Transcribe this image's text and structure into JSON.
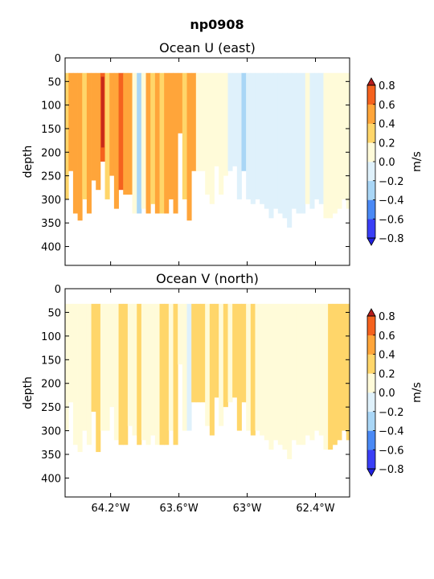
{
  "suptitle": "np0908",
  "chart_data": [
    {
      "type": "heatmap",
      "title": "Ocean U (east)",
      "ylabel": "depth",
      "xlabel": "",
      "x_ticks": [
        "64.2°W",
        "63.6°W",
        "63°W",
        "62.4°W"
      ],
      "x_tick_values": [
        -64.2,
        -63.6,
        -63.0,
        -62.4
      ],
      "x_range": [
        -64.6,
        -62.1
      ],
      "y_ticks": [
        "0",
        "50",
        "100",
        "150",
        "200",
        "250",
        "300",
        "350",
        "400"
      ],
      "y_range": [
        440,
        0
      ],
      "y_inverted": true,
      "colorbar": {
        "label": "m/s",
        "ticks": [
          "0.8",
          "0.6",
          "0.4",
          "0.2",
          "0.0",
          "−0.2",
          "−0.4",
          "−0.6",
          "−0.8"
        ],
        "levels": [
          -0.8,
          -0.6,
          -0.4,
          -0.2,
          0.0,
          0.2,
          0.4,
          0.6,
          0.8
        ],
        "extend": "both"
      },
      "profiles": [
        {
          "lon": -64.6,
          "bottom": 300,
          "v": 0.25
        },
        {
          "lon": -64.57,
          "bottom": 240,
          "v": 0.45
        },
        {
          "lon": -64.53,
          "bottom": 330,
          "v": 0.55
        },
        {
          "lon": -64.49,
          "bottom": 345,
          "v": 0.45
        },
        {
          "lon": -64.45,
          "bottom": 300,
          "v": 0.3
        },
        {
          "lon": -64.41,
          "bottom": 330,
          "v": 0.45
        },
        {
          "lon": -64.37,
          "bottom": 260,
          "v": 0.55
        },
        {
          "lon": -64.33,
          "bottom": 280,
          "v": 0.45
        },
        {
          "lon": -64.29,
          "bottom": 220,
          "v": 0.7
        },
        {
          "lon": -64.25,
          "bottom": 300,
          "v": 0.3
        },
        {
          "lon": -64.21,
          "bottom": 250,
          "v": 0.55
        },
        {
          "lon": -64.17,
          "bottom": 320,
          "v": 0.45
        },
        {
          "lon": -64.13,
          "bottom": 280,
          "v": 0.6
        },
        {
          "lon": -64.09,
          "bottom": 290,
          "v": 0.55
        },
        {
          "lon": -64.05,
          "bottom": 290,
          "v": 0.45
        },
        {
          "lon": -64.01,
          "bottom": 330,
          "v": 0.15
        },
        {
          "lon": -63.97,
          "bottom": 330,
          "v": -0.25
        },
        {
          "lon": -63.93,
          "bottom": 320,
          "v": 0.1
        },
        {
          "lon": -63.89,
          "bottom": 330,
          "v": 0.45
        },
        {
          "lon": -63.85,
          "bottom": 310,
          "v": 0.25
        },
        {
          "lon": -63.81,
          "bottom": 330,
          "v": 0.55
        },
        {
          "lon": -63.77,
          "bottom": 330,
          "v": 0.35
        },
        {
          "lon": -63.73,
          "bottom": 330,
          "v": 0.55
        },
        {
          "lon": -63.69,
          "bottom": 300,
          "v": 0.5
        },
        {
          "lon": -63.65,
          "bottom": 330,
          "v": 0.45
        },
        {
          "lon": -63.61,
          "bottom": 160,
          "v": 0.5
        },
        {
          "lon": -63.57,
          "bottom": 300,
          "v": 0.35
        },
        {
          "lon": -63.53,
          "bottom": 345,
          "v": 0.55
        },
        {
          "lon": -63.49,
          "bottom": 240,
          "v": 0.45
        },
        {
          "lon": -63.45,
          "bottom": 240,
          "v": 0.15
        },
        {
          "lon": -63.41,
          "bottom": 240,
          "v": 0.1
        },
        {
          "lon": -63.37,
          "bottom": 290,
          "v": 0.1
        },
        {
          "lon": -63.33,
          "bottom": 310,
          "v": 0.15
        },
        {
          "lon": -63.29,
          "bottom": 230,
          "v": 0.1
        },
        {
          "lon": -63.25,
          "bottom": 290,
          "v": 0.05
        },
        {
          "lon": -63.21,
          "bottom": 250,
          "v": 0.1
        },
        {
          "lon": -63.17,
          "bottom": 240,
          "v": -0.05
        },
        {
          "lon": -63.13,
          "bottom": 230,
          "v": -0.05
        },
        {
          "lon": -63.09,
          "bottom": 300,
          "v": -0.1
        },
        {
          "lon": -63.05,
          "bottom": 240,
          "v": -0.25
        },
        {
          "lon": -63.01,
          "bottom": 300,
          "v": -0.1
        },
        {
          "lon": -62.97,
          "bottom": 310,
          "v": -0.05
        },
        {
          "lon": -62.93,
          "bottom": 300,
          "v": -0.1
        },
        {
          "lon": -62.89,
          "bottom": 310,
          "v": -0.05
        },
        {
          "lon": -62.85,
          "bottom": 320,
          "v": -0.1
        },
        {
          "lon": -62.81,
          "bottom": 340,
          "v": -0.05
        },
        {
          "lon": -62.77,
          "bottom": 320,
          "v": -0.1
        },
        {
          "lon": -62.73,
          "bottom": 330,
          "v": -0.05
        },
        {
          "lon": -62.69,
          "bottom": 340,
          "v": -0.1
        },
        {
          "lon": -62.65,
          "bottom": 360,
          "v": -0.05
        },
        {
          "lon": -62.61,
          "bottom": 320,
          "v": -0.1
        },
        {
          "lon": -62.57,
          "bottom": 330,
          "v": -0.05
        },
        {
          "lon": -62.53,
          "bottom": 330,
          "v": -0.1
        },
        {
          "lon": -62.49,
          "bottom": 310,
          "v": 0.1
        },
        {
          "lon": -62.45,
          "bottom": 320,
          "v": -0.05
        },
        {
          "lon": -62.41,
          "bottom": 300,
          "v": -0.1
        },
        {
          "lon": -62.37,
          "bottom": 310,
          "v": -0.05
        },
        {
          "lon": -62.33,
          "bottom": 340,
          "v": 0.1
        },
        {
          "lon": -62.29,
          "bottom": 340,
          "v": 0.05
        },
        {
          "lon": -62.25,
          "bottom": 330,
          "v": 0.05
        },
        {
          "lon": -62.21,
          "bottom": 320,
          "v": 0.1
        },
        {
          "lon": -62.17,
          "bottom": 300,
          "v": 0.15
        },
        {
          "lon": -62.13,
          "bottom": 320,
          "v": 0.05
        }
      ]
    },
    {
      "type": "heatmap",
      "title": "Ocean V (north)",
      "ylabel": "depth",
      "xlabel": "",
      "x_ticks": [
        "64.2°W",
        "63.6°W",
        "63°W",
        "62.4°W"
      ],
      "x_tick_values": [
        -64.2,
        -63.6,
        -63.0,
        -62.4
      ],
      "x_range": [
        -64.6,
        -62.1
      ],
      "y_ticks": [
        "0",
        "50",
        "100",
        "150",
        "200",
        "250",
        "300",
        "350",
        "400"
      ],
      "y_range": [
        440,
        0
      ],
      "y_inverted": true,
      "colorbar": {
        "label": "m/s",
        "ticks": [
          "0.8",
          "0.6",
          "0.4",
          "0.2",
          "0.0",
          "−0.2",
          "−0.4",
          "−0.6",
          "−0.8"
        ],
        "levels": [
          -0.8,
          -0.6,
          -0.4,
          -0.2,
          0.0,
          0.2,
          0.4,
          0.6,
          0.8
        ],
        "extend": "both"
      },
      "profiles": [
        {
          "lon": -64.6,
          "bottom": 300,
          "v": 0.1
        },
        {
          "lon": -64.57,
          "bottom": 240,
          "v": 0.1
        },
        {
          "lon": -64.53,
          "bottom": 330,
          "v": 0.1
        },
        {
          "lon": -64.49,
          "bottom": 345,
          "v": 0.1
        },
        {
          "lon": -64.45,
          "bottom": 300,
          "v": 0.05
        },
        {
          "lon": -64.41,
          "bottom": 330,
          "v": 0.15
        },
        {
          "lon": -64.37,
          "bottom": 260,
          "v": 0.25
        },
        {
          "lon": -64.33,
          "bottom": 345,
          "v": 0.3
        },
        {
          "lon": -64.29,
          "bottom": 300,
          "v": 0.1
        },
        {
          "lon": -64.25,
          "bottom": 300,
          "v": 0.05
        },
        {
          "lon": -64.21,
          "bottom": 250,
          "v": 0.15
        },
        {
          "lon": -64.17,
          "bottom": 320,
          "v": 0.1
        },
        {
          "lon": -64.13,
          "bottom": 330,
          "v": 0.25
        },
        {
          "lon": -64.09,
          "bottom": 330,
          "v": 0.25
        },
        {
          "lon": -64.05,
          "bottom": 290,
          "v": 0.1
        },
        {
          "lon": -64.01,
          "bottom": 310,
          "v": 0.05
        },
        {
          "lon": -63.97,
          "bottom": 330,
          "v": 0.25
        },
        {
          "lon": -63.93,
          "bottom": 320,
          "v": 0.05
        },
        {
          "lon": -63.89,
          "bottom": 330,
          "v": 0.1
        },
        {
          "lon": -63.85,
          "bottom": 310,
          "v": 0.15
        },
        {
          "lon": -63.81,
          "bottom": 330,
          "v": 0.1
        },
        {
          "lon": -63.77,
          "bottom": 330,
          "v": 0.3
        },
        {
          "lon": -63.73,
          "bottom": 330,
          "v": 0.25
        },
        {
          "lon": -63.69,
          "bottom": 300,
          "v": 0.1
        },
        {
          "lon": -63.65,
          "bottom": 330,
          "v": 0.25
        },
        {
          "lon": -63.61,
          "bottom": 160,
          "v": 0.1
        },
        {
          "lon": -63.57,
          "bottom": 300,
          "v": 0.05
        },
        {
          "lon": -63.53,
          "bottom": 300,
          "v": -0.1
        },
        {
          "lon": -63.49,
          "bottom": 240,
          "v": 0.25
        },
        {
          "lon": -63.45,
          "bottom": 240,
          "v": 0.3
        },
        {
          "lon": -63.41,
          "bottom": 240,
          "v": 0.25
        },
        {
          "lon": -63.37,
          "bottom": 290,
          "v": 0.15
        },
        {
          "lon": -63.33,
          "bottom": 310,
          "v": 0.3
        },
        {
          "lon": -63.29,
          "bottom": 230,
          "v": 0.25
        },
        {
          "lon": -63.25,
          "bottom": 290,
          "v": 0.1
        },
        {
          "lon": -63.21,
          "bottom": 250,
          "v": 0.25
        },
        {
          "lon": -63.17,
          "bottom": 240,
          "v": 0.1
        },
        {
          "lon": -63.13,
          "bottom": 230,
          "v": 0.25
        },
        {
          "lon": -63.09,
          "bottom": 300,
          "v": 0.25
        },
        {
          "lon": -63.05,
          "bottom": 240,
          "v": 0.3
        },
        {
          "lon": -63.01,
          "bottom": 300,
          "v": 0.1
        },
        {
          "lon": -62.97,
          "bottom": 310,
          "v": 0.25
        },
        {
          "lon": -62.93,
          "bottom": 300,
          "v": 0.1
        },
        {
          "lon": -62.89,
          "bottom": 310,
          "v": 0.05
        },
        {
          "lon": -62.85,
          "bottom": 320,
          "v": 0.1
        },
        {
          "lon": -62.81,
          "bottom": 340,
          "v": 0.05
        },
        {
          "lon": -62.77,
          "bottom": 320,
          "v": 0.1
        },
        {
          "lon": -62.73,
          "bottom": 330,
          "v": 0.05
        },
        {
          "lon": -62.69,
          "bottom": 340,
          "v": 0.1
        },
        {
          "lon": -62.65,
          "bottom": 360,
          "v": 0.05
        },
        {
          "lon": -62.61,
          "bottom": 320,
          "v": 0.1
        },
        {
          "lon": -62.57,
          "bottom": 330,
          "v": 0.05
        },
        {
          "lon": -62.53,
          "bottom": 330,
          "v": 0.1
        },
        {
          "lon": -62.49,
          "bottom": 310,
          "v": 0.1
        },
        {
          "lon": -62.45,
          "bottom": 320,
          "v": 0.05
        },
        {
          "lon": -62.41,
          "bottom": 300,
          "v": 0.1
        },
        {
          "lon": -62.37,
          "bottom": 310,
          "v": 0.05
        },
        {
          "lon": -62.33,
          "bottom": 340,
          "v": 0.1
        },
        {
          "lon": -62.29,
          "bottom": 340,
          "v": 0.25
        },
        {
          "lon": -62.25,
          "bottom": 330,
          "v": 0.3
        },
        {
          "lon": -62.21,
          "bottom": 320,
          "v": 0.25
        },
        {
          "lon": -62.17,
          "bottom": 300,
          "v": 0.3
        },
        {
          "lon": -62.13,
          "bottom": 320,
          "v": 0.25
        }
      ]
    }
  ]
}
